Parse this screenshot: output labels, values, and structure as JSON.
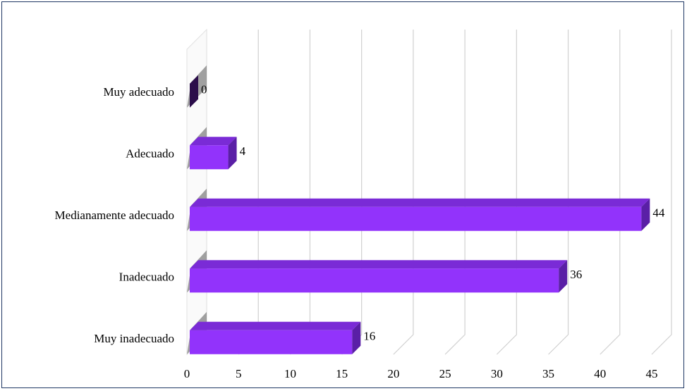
{
  "chart_data": {
    "type": "bar",
    "orientation": "horizontal",
    "categories": [
      "Muy adecuado",
      "Adecuado",
      "Medianamente adecuado",
      "Inadecuado",
      "Muy inadecuado"
    ],
    "values": [
      0,
      4,
      44,
      36,
      16
    ],
    "xlim": [
      0,
      45
    ],
    "x_ticks": [
      "0",
      "5",
      "10",
      "15",
      "20",
      "25",
      "30",
      "35",
      "40",
      "45"
    ],
    "title": "",
    "xlabel": "",
    "ylabel": "",
    "grid": true,
    "legend": "none",
    "colors": {
      "bar_front": "#9233fb",
      "bar_top": "#7a2bd6",
      "bar_side": "#5a1fa6",
      "zero_bar": "#2b0d4a",
      "grid": "#d0d0d0",
      "border": "#1f3864"
    }
  }
}
